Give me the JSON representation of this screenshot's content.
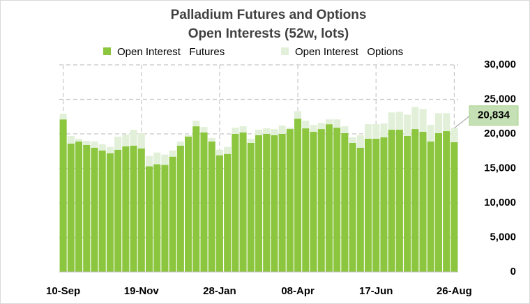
{
  "chart_data": {
    "type": "stacked_bar",
    "title": [
      "Palladium  Futures and Options",
      "Open Interests (52w, lots)"
    ],
    "categories": [
      "10-Sep",
      null,
      null,
      null,
      null,
      null,
      null,
      null,
      null,
      null,
      "19-Nov",
      null,
      null,
      null,
      null,
      null,
      null,
      null,
      null,
      null,
      "28-Jan",
      null,
      null,
      null,
      null,
      null,
      null,
      null,
      null,
      null,
      "08-Apr",
      null,
      null,
      null,
      null,
      null,
      null,
      null,
      null,
      null,
      "17-Jun",
      null,
      null,
      null,
      null,
      null,
      null,
      null,
      null,
      null,
      "26-Aug"
    ],
    "series": [
      {
        "name": "Open Interest   Futures",
        "color": "#8cc63f",
        "values": [
          22100,
          18600,
          18900,
          18400,
          18000,
          17600,
          17200,
          17700,
          18200,
          18300,
          17900,
          15300,
          15600,
          15500,
          16700,
          18300,
          19600,
          21100,
          20200,
          18900,
          16900,
          17100,
          20000,
          20200,
          18700,
          19800,
          20000,
          19800,
          20000,
          20700,
          22200,
          20800,
          20300,
          20700,
          21400,
          20900,
          20100,
          18700,
          18000,
          19300,
          19300,
          19500,
          20600,
          20600,
          19700,
          20700,
          20300,
          18900,
          20100,
          20400,
          18800
        ]
      },
      {
        "name": "Open Interest   Options",
        "color": "#e2f0d9",
        "values": [
          800,
          1100,
          400,
          600,
          900,
          900,
          900,
          1900,
          1700,
          2300,
          2200,
          1500,
          1700,
          1500,
          900,
          600,
          200,
          800,
          800,
          500,
          800,
          1000,
          900,
          900,
          600,
          800,
          800,
          900,
          1200,
          200,
          1100,
          1100,
          1000,
          900,
          700,
          1200,
          1000,
          800,
          1800,
          2100,
          2100,
          2000,
          2500,
          2600,
          3100,
          3200,
          3300,
          2400,
          2900,
          2600,
          2034
        ]
      }
    ],
    "callout": {
      "value": 20834,
      "label": "20,834"
    },
    "ylim": [
      0,
      30000
    ],
    "yticks": [
      0,
      {
        "value": 5000,
        "label": "5,000"
      },
      {
        "value": 10000,
        "label": "10,000"
      },
      {
        "value": 15000,
        "label": "15,000"
      },
      {
        "value": 20000,
        "label": "20,000"
      },
      {
        "value": 25000,
        "label": "25,000"
      },
      {
        "value": 30000,
        "label": "30,000"
      }
    ],
    "grid": true,
    "legend": "top"
  }
}
